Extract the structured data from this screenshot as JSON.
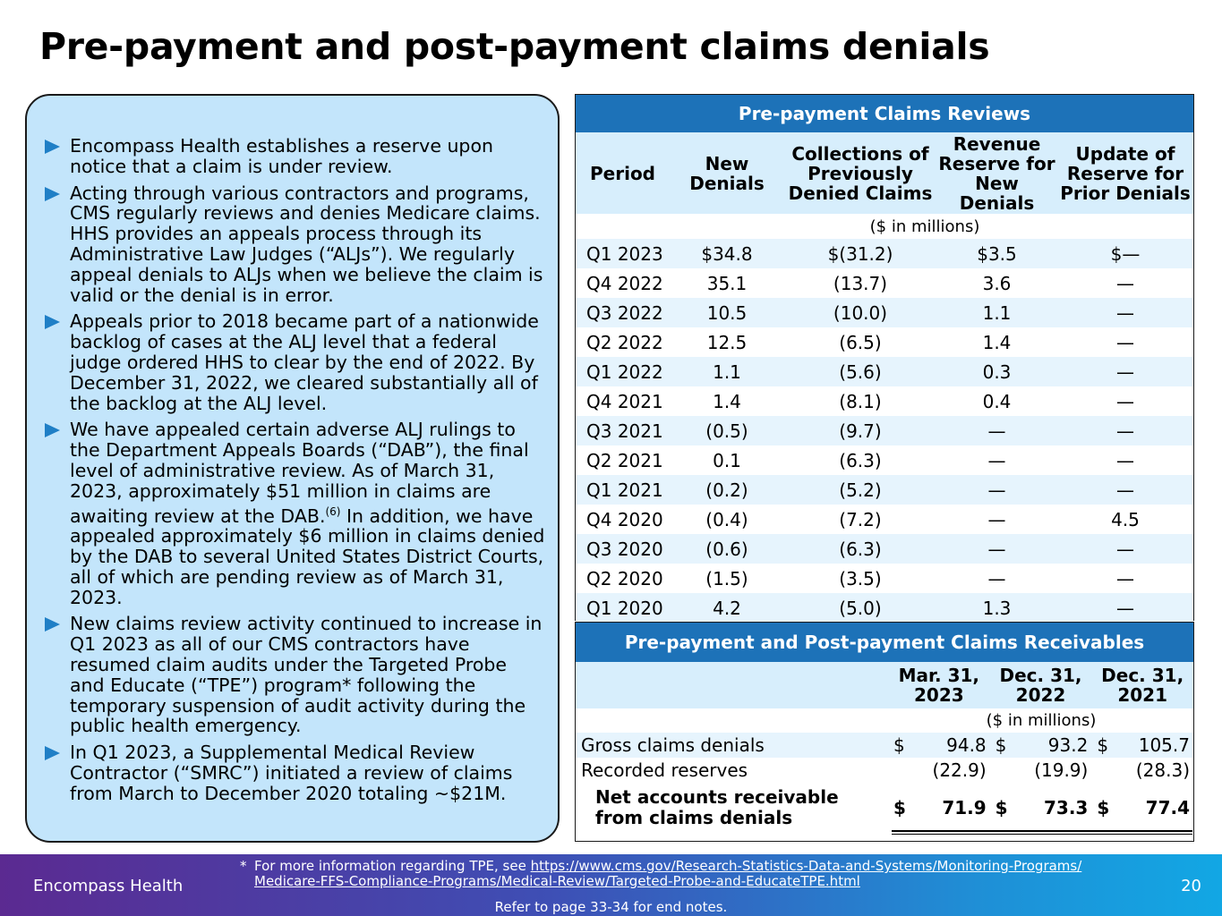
{
  "title": "Pre-payment and post-payment claims denials",
  "bullets": [
    "Encompass Health establishes a reserve upon notice that a claim is under review.",
    "Acting through various contractors and programs, CMS regularly reviews and denies Medicare claims. HHS provides an appeals process through its Administrative Law Judges (“ALJs”). We regularly appeal denials to ALJs when we believe the claim is valid or the denial is in error.",
    "Appeals prior to 2018 became part of a nationwide backlog of cases at the ALJ level that a federal judge ordered HHS to clear by the end of 2022. By December 31, 2022, we cleared substantially all of the backlog at the ALJ level.",
    {
      "before": "We have appealed certain adverse ALJ rulings to the Department Appeals Boards (“DAB”), the final level of administrative review. As of March 31, 2023, approximately $51 million in claims are awaiting review at the DAB.",
      "sup": "(6)",
      "after": " In addition, we have appealed approximately $6 million in claims denied by the DAB to several United States District Courts, all of which are pending review as of March 31, 2023."
    },
    "New claims review activity continued to increase in Q1 2023 as all of our CMS contractors have resumed claim audits under the Targeted Probe and Educate (“TPE”) program* following the temporary suspension of audit activity during the public health emergency.",
    "In Q1 2023, a Supplemental Medical Review Contractor (“SMRC”) initiated a review of claims from March to December 2020 totaling ~$21M."
  ],
  "reviews_table": {
    "title": "Pre-payment Claims Reviews",
    "headers": [
      "Period",
      "New Denials",
      "Collections of Previously Denied Claims",
      "Revenue Reserve for New Denials",
      "Update of Reserve for Prior Denials"
    ],
    "units": "($ in millions)",
    "rows": [
      [
        "Q1 2023",
        "$34.8",
        "$(31.2)",
        "$3.5",
        "$—"
      ],
      [
        "Q4 2022",
        "35.1",
        "(13.7)",
        "3.6",
        "—"
      ],
      [
        "Q3 2022",
        "10.5",
        "(10.0)",
        "1.1",
        "—"
      ],
      [
        "Q2 2022",
        "12.5",
        "(6.5)",
        "1.4",
        "—"
      ],
      [
        "Q1 2022",
        "1.1",
        "(5.6)",
        "0.3",
        "—"
      ],
      [
        "Q4 2021",
        "1.4",
        "(8.1)",
        "0.4",
        "—"
      ],
      [
        "Q3 2021",
        "(0.5)",
        "(9.7)",
        "—",
        "—"
      ],
      [
        "Q2 2021",
        "0.1",
        "(6.3)",
        "—",
        "—"
      ],
      [
        "Q1 2021",
        "(0.2)",
        "(5.2)",
        "—",
        "—"
      ],
      [
        "Q4 2020",
        "(0.4)",
        "(7.2)",
        "—",
        "4.5"
      ],
      [
        "Q3 2020",
        "(0.6)",
        "(6.3)",
        "—",
        "—"
      ],
      [
        "Q2 2020",
        "(1.5)",
        "(3.5)",
        "—",
        "—"
      ],
      [
        "Q1 2020",
        "4.2",
        "(5.0)",
        "1.3",
        "—"
      ]
    ]
  },
  "receivables_table": {
    "title": "Pre-payment and Post-payment Claims Receivables",
    "headers": [
      "Mar. 31, 2023",
      "Dec. 31, 2022",
      "Dec. 31, 2021"
    ],
    "units": "($ in millions)",
    "rows": [
      {
        "label": "Gross claims denials",
        "cur": [
          "$",
          "$",
          "$"
        ],
        "values": [
          "94.8",
          "93.2",
          "105.7"
        ]
      },
      {
        "label": "Recorded reserves",
        "cur": [
          "",
          "",
          ""
        ],
        "values": [
          "(22.9)",
          "(19.9)",
          "(28.3)"
        ]
      },
      {
        "label": "Net accounts receivable from claims denials",
        "cur": [
          "$",
          "$",
          "$"
        ],
        "values": [
          "71.9",
          "73.3",
          "77.4"
        ]
      }
    ]
  },
  "footer": {
    "brand": "Encompass Health",
    "footnote_star": "*",
    "footnote_text": "For more information regarding TPE, see ",
    "footnote_link": "https://www.cms.gov/Research-Statistics-Data-and-Systems/Monitoring-Programs/Medicare-FFS-Compliance-Programs/Medical-Review/Targeted-Probe-and-EducateTPE.html",
    "footnote_link_line1": "https://www.cms.gov/Research-Statistics-Data-and-Systems/Monitoring-Programs/",
    "footnote_link_line2": "Medicare-FFS-Compliance-Programs/Medical-Review/Targeted-Probe-and-EducateTPE.html",
    "endnote": "Refer to page 33-34 for end notes.",
    "page_number": "20"
  },
  "colors": {
    "accent_blue": "#1d72b8",
    "panel_bg": "#c3e5fb",
    "bullet_marker": "#1f7fc6",
    "footer_gradient_start": "#5b2a91",
    "footer_gradient_end": "#12a7e4"
  }
}
